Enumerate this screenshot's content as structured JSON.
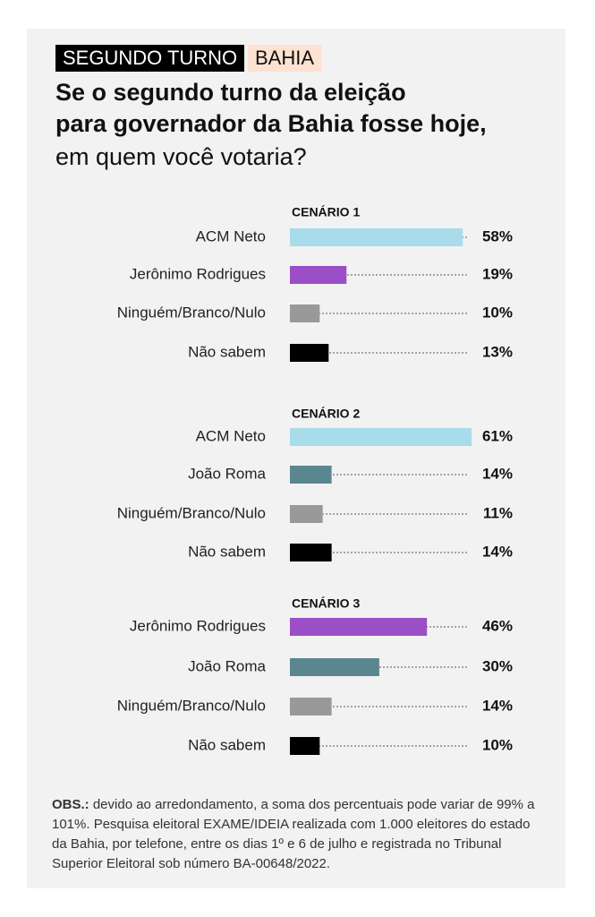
{
  "header": {
    "tags": [
      "SEGUNDO TURNO",
      "BAHIA"
    ],
    "title_bold": [
      "Se o segundo turno da eleição",
      "para governador da Bahia fosse hoje,"
    ],
    "title_regular": "em quem você votaria?"
  },
  "chart_data": [
    {
      "type": "bar",
      "title": "CENÁRIO 1",
      "categories": [
        "ACM Neto",
        "Jerônimo Rodrigues",
        "Ninguém/Branco/Nulo",
        "Não sabem"
      ],
      "values": [
        58,
        19,
        10,
        13
      ],
      "value_labels": [
        "58%",
        "19%",
        "10%",
        "13%"
      ],
      "colors": [
        "#a8dcea",
        "#9a4fc6",
        "#999999",
        "#000000"
      ]
    },
    {
      "type": "bar",
      "title": "CENÁRIO 2",
      "categories": [
        "ACM Neto",
        "João Roma",
        "Ninguém/Branco/Nulo",
        "Não sabem"
      ],
      "values": [
        61,
        14,
        11,
        14
      ],
      "value_labels": [
        "61%",
        "14%",
        "11%",
        "14%"
      ],
      "colors": [
        "#a8dcea",
        "#5a8690",
        "#999999",
        "#000000"
      ]
    },
    {
      "type": "bar",
      "title": "CENÁRIO 3",
      "categories": [
        "Jerônimo Rodrigues",
        "João Roma",
        "Ninguém/Branco/Nulo",
        "Não sabem"
      ],
      "values": [
        46,
        30,
        14,
        10
      ],
      "value_labels": [
        "46%",
        "30%",
        "14%",
        "10%"
      ],
      "colors": [
        "#9a4fc6",
        "#5a8690",
        "#999999",
        "#000000"
      ]
    }
  ],
  "note": {
    "label": "OBS.:",
    "text": "devido ao arredondamento, a soma dos percentuais pode variar de 99% a 101%. Pesquisa eleitoral EXAME/IDEIA realizada com 1.000 eleitores do estado da Bahia, por telefone, entre os dias 1º e 6 de julho e registrada no Tribunal Superior Eleitoral sob número BA-00648/2022."
  }
}
